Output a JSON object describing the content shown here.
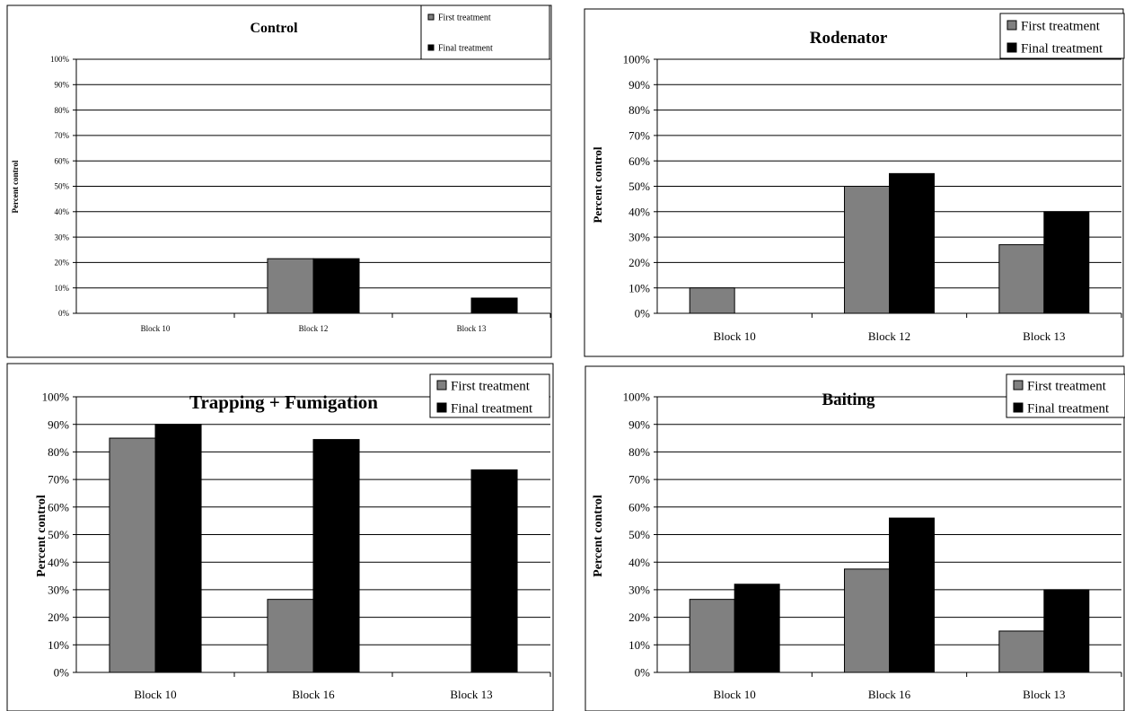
{
  "colors": {
    "first_treatment": "#808080",
    "final_treatment": "#000000",
    "grid": "#000000",
    "background": "#ffffff"
  },
  "chart_data": [
    {
      "type": "bar",
      "title": "Control",
      "xlabel": "",
      "ylabel": "Percent control",
      "ylim": [
        0,
        100
      ],
      "y_unit": "%",
      "y_ticks": [
        "0%",
        "10%",
        "20%",
        "30%",
        "40%",
        "50%",
        "60%",
        "70%",
        "80%",
        "90%",
        "100%"
      ],
      "categories": [
        "Block 10",
        "Block 12",
        "Block 13"
      ],
      "legend_placement": "top-right",
      "grid": true,
      "series": [
        {
          "name": "First treatment",
          "color": "#808080",
          "values": [
            0,
            21.5,
            0
          ]
        },
        {
          "name": "Final treatment",
          "color": "#000000",
          "values": [
            0,
            21.5,
            6
          ]
        }
      ]
    },
    {
      "type": "bar",
      "title": "Rodenator",
      "xlabel": "",
      "ylabel": "Percent control",
      "ylim": [
        0,
        100
      ],
      "y_unit": "%",
      "y_ticks": [
        "0%",
        "10%",
        "20%",
        "30%",
        "40%",
        "50%",
        "60%",
        "70%",
        "80%",
        "90%",
        "100%"
      ],
      "categories": [
        "Block 10",
        "Block 12",
        "Block 13"
      ],
      "legend_placement": "top-right",
      "grid": true,
      "series": [
        {
          "name": "First treatment",
          "color": "#808080",
          "values": [
            10,
            50,
            27
          ]
        },
        {
          "name": "Final treatment",
          "color": "#000000",
          "values": [
            0,
            55,
            40
          ]
        }
      ]
    },
    {
      "type": "bar",
      "title": "Trapping + Fumigation",
      "xlabel": "",
      "ylabel": "Percent control",
      "ylim": [
        0,
        100
      ],
      "y_unit": "%",
      "y_ticks": [
        "0%",
        "10%",
        "20%",
        "30%",
        "40%",
        "50%",
        "60%",
        "70%",
        "80%",
        "90%",
        "100%"
      ],
      "categories": [
        "Block 10",
        "Block 16",
        "Block 13"
      ],
      "legend_placement": "top-right",
      "grid": true,
      "series": [
        {
          "name": "First treatment",
          "color": "#808080",
          "values": [
            85,
            26.5,
            0
          ]
        },
        {
          "name": "Final treatment",
          "color": "#000000",
          "values": [
            90,
            84.5,
            73.5
          ]
        }
      ]
    },
    {
      "type": "bar",
      "title": "Baiting",
      "xlabel": "",
      "ylabel": "Percent control",
      "ylim": [
        0,
        100
      ],
      "y_unit": "%",
      "y_ticks": [
        "0%",
        "10%",
        "20%",
        "30%",
        "40%",
        "50%",
        "60%",
        "70%",
        "80%",
        "90%",
        "100%"
      ],
      "categories": [
        "Block 10",
        "Block 16",
        "Block 13"
      ],
      "legend_placement": "top-right",
      "grid": true,
      "series": [
        {
          "name": "First treatment",
          "color": "#808080",
          "values": [
            26.5,
            37.5,
            15
          ]
        },
        {
          "name": "Final treatment",
          "color": "#000000",
          "values": [
            32,
            56,
            30
          ]
        }
      ]
    }
  ]
}
